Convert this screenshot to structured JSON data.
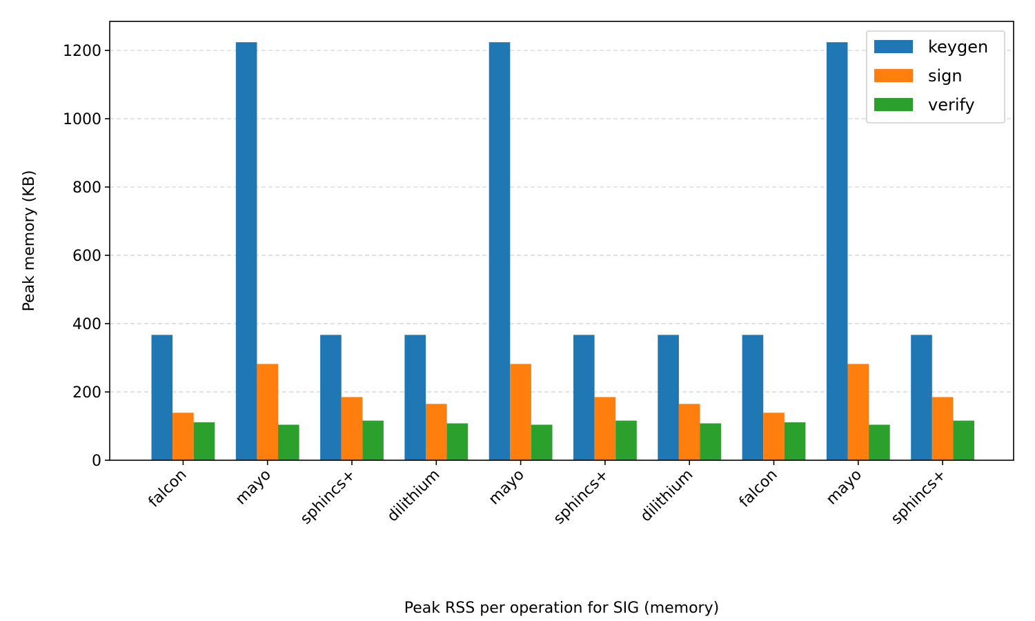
{
  "chart_data": {
    "type": "bar",
    "categories": [
      "falcon",
      "mayo",
      "sphincs+",
      "dilithium",
      "mayo",
      "sphincs+",
      "dilithium",
      "falcon",
      "mayo",
      "sphincs+"
    ],
    "series": [
      {
        "name": "keygen",
        "color": "#1f77b4",
        "values": [
          367,
          1224,
          367,
          367,
          1224,
          367,
          367,
          367,
          1224,
          367
        ]
      },
      {
        "name": "sign",
        "color": "#ff7f0e",
        "values": [
          139,
          282,
          185,
          165,
          282,
          185,
          165,
          139,
          282,
          185
        ]
      },
      {
        "name": "verify",
        "color": "#2ca02c",
        "values": [
          111,
          104,
          116,
          108,
          104,
          116,
          108,
          111,
          104,
          116
        ]
      }
    ],
    "xlabel": "Peak RSS per operation for SIG (memory)",
    "ylabel": "Peak memory (KB)",
    "ylim": [
      0,
      1285
    ],
    "yticks": [
      0,
      200,
      400,
      600,
      800,
      1000,
      1200
    ],
    "grid": "y-dashed",
    "legend": "top-right"
  }
}
